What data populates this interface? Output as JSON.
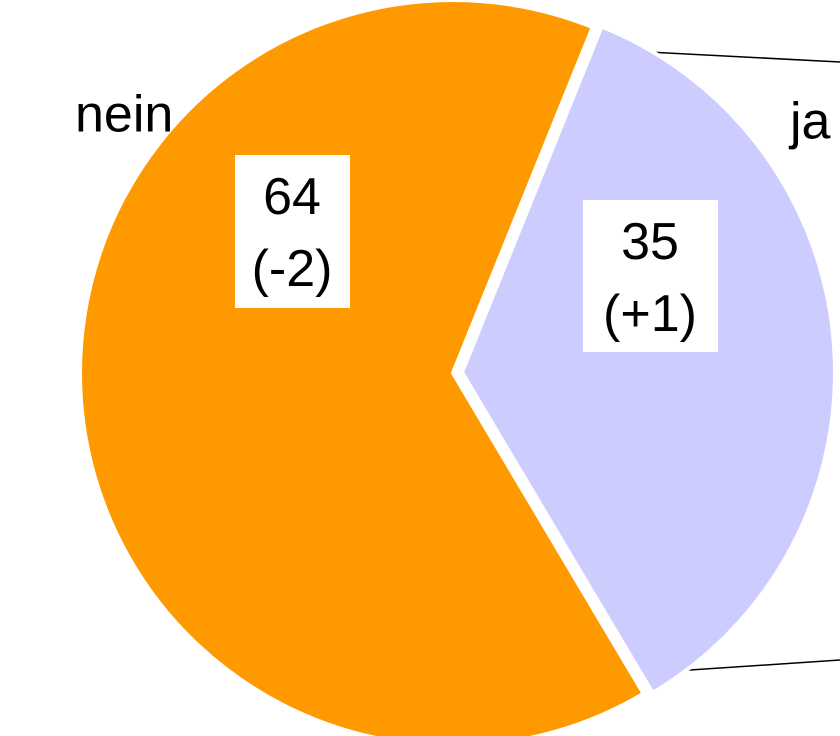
{
  "chart_data": {
    "type": "pie",
    "categories": [
      "nein",
      "ja"
    ],
    "values": [
      64,
      35
    ],
    "value_labels": [
      "64\n(-2)",
      "35\n(+1)"
    ],
    "colors": [
      "#ff9900",
      "#ccccff"
    ]
  }
}
